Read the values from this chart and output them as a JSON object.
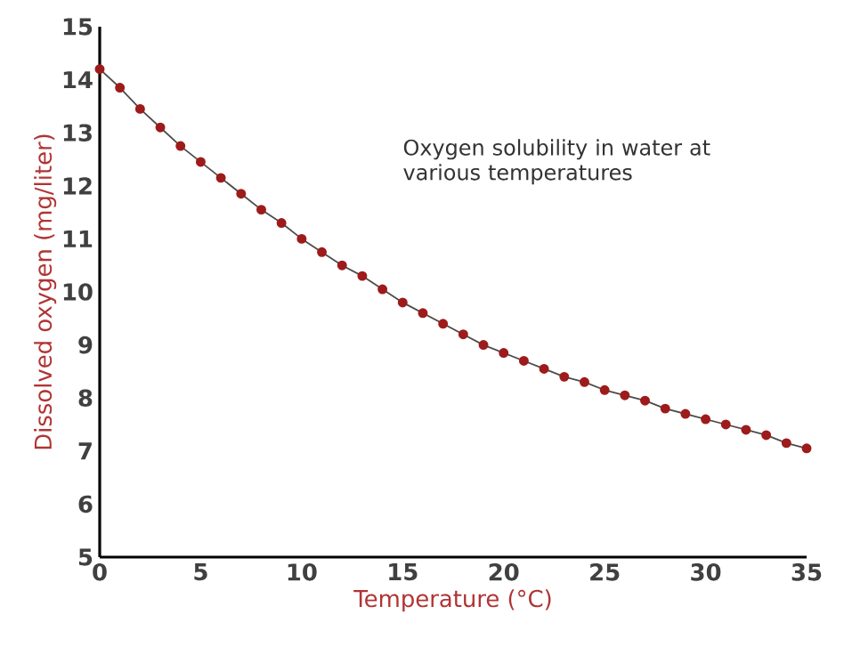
{
  "chart_data": {
    "type": "line",
    "xlabel": "Temperature (°C)",
    "ylabel": "Dissolved oxygen (mg/liter)",
    "annotations": [
      "Oxygen solubility in water at various temperatures"
    ],
    "x": [
      0,
      1,
      2,
      3,
      4,
      5,
      6,
      7,
      8,
      9,
      10,
      11,
      12,
      13,
      14,
      15,
      16,
      17,
      18,
      19,
      20,
      21,
      22,
      23,
      24,
      25,
      26,
      27,
      28,
      29,
      30,
      31,
      32,
      33,
      34,
      35
    ],
    "series": [
      {
        "color": "#9e1b1b",
        "values": [
          14.2,
          13.85,
          13.45,
          13.1,
          12.75,
          12.45,
          12.15,
          11.85,
          11.55,
          11.3,
          11.0,
          10.75,
          10.5,
          10.3,
          10.05,
          9.8,
          9.6,
          9.4,
          9.2,
          9.0,
          8.85,
          8.7,
          8.55,
          8.4,
          8.3,
          8.15,
          8.05,
          7.95,
          7.8,
          7.7,
          7.6,
          7.5,
          7.4,
          7.3,
          7.15,
          7.05
        ]
      }
    ],
    "xlim": [
      0,
      35
    ],
    "xticks": [
      0,
      5,
      10,
      15,
      20,
      25,
      30,
      35
    ],
    "ylim": [
      5,
      15
    ],
    "yticks": [
      5,
      6,
      7,
      8,
      9,
      10,
      11,
      12,
      13,
      14,
      15
    ],
    "marker": "circle"
  }
}
